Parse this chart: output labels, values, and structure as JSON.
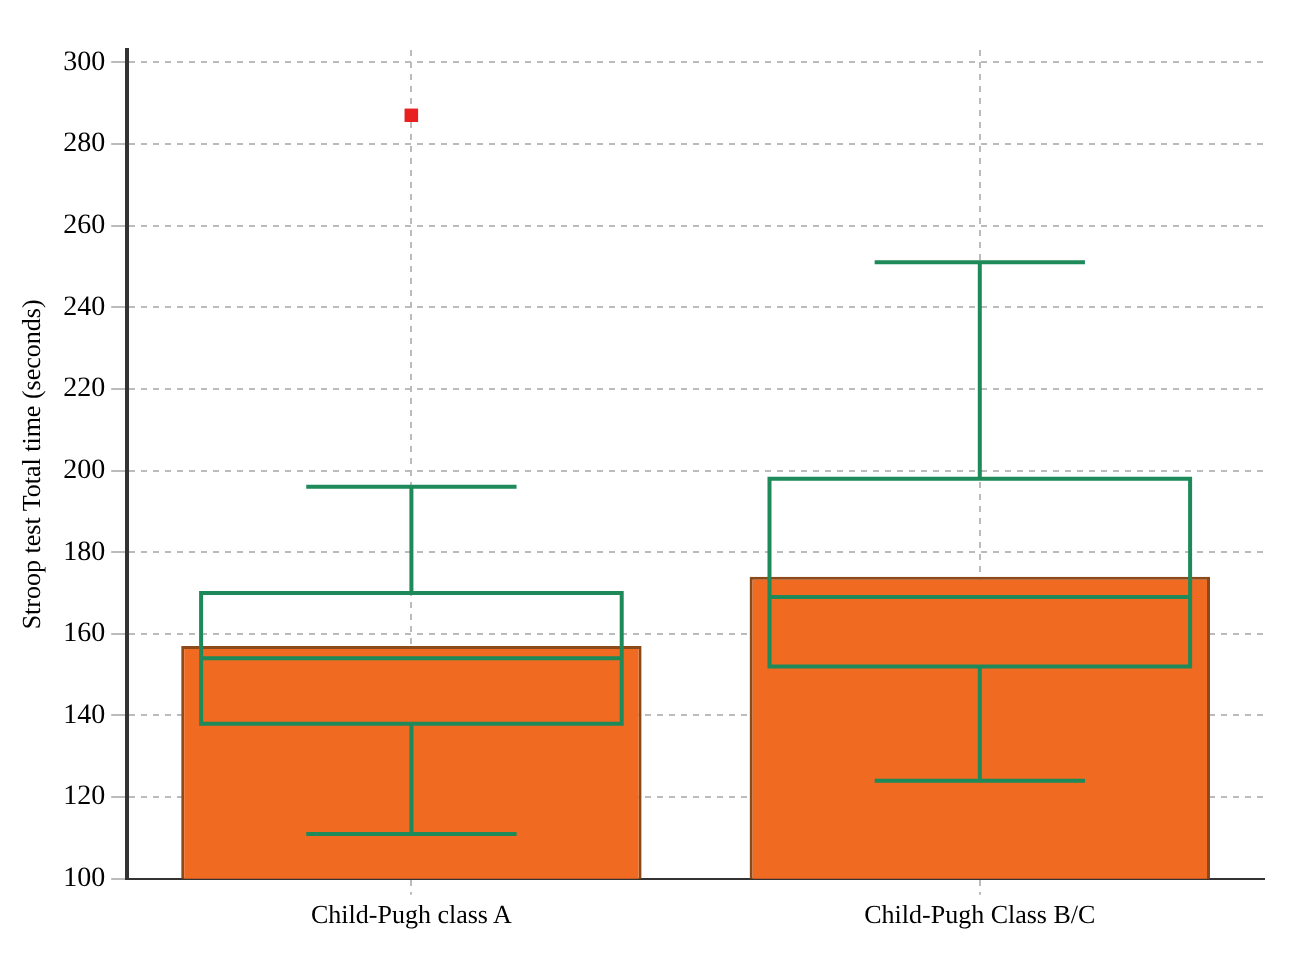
{
  "chart_data": {
    "type": "box",
    "ylabel": "Stroop test Total time (seconds)",
    "categories": [
      "Child-Pugh class A",
      "Child-Pugh Class B/C"
    ],
    "series": [
      {
        "type": "bar",
        "color": "#f06a22",
        "values": [
          157,
          174
        ]
      },
      {
        "color": "#1e8a5a",
        "boxes": [
          {
            "low": 111,
            "q1": 138,
            "median": 154,
            "q3": 170,
            "high": 196
          },
          {
            "low": 124,
            "q1": 152,
            "median": 169,
            "q3": 198,
            "high": 251
          }
        ]
      },
      {
        "type": "scatter",
        "color": "#e82020",
        "marker": "square",
        "x": [
          "Child-Pugh class A"
        ],
        "values": [
          287
        ]
      }
    ],
    "ylim": [
      100,
      303
    ],
    "yticks": [
      100,
      120,
      140,
      160,
      180,
      200,
      220,
      240,
      260,
      280,
      300
    ],
    "grid": true,
    "legend": false
  }
}
